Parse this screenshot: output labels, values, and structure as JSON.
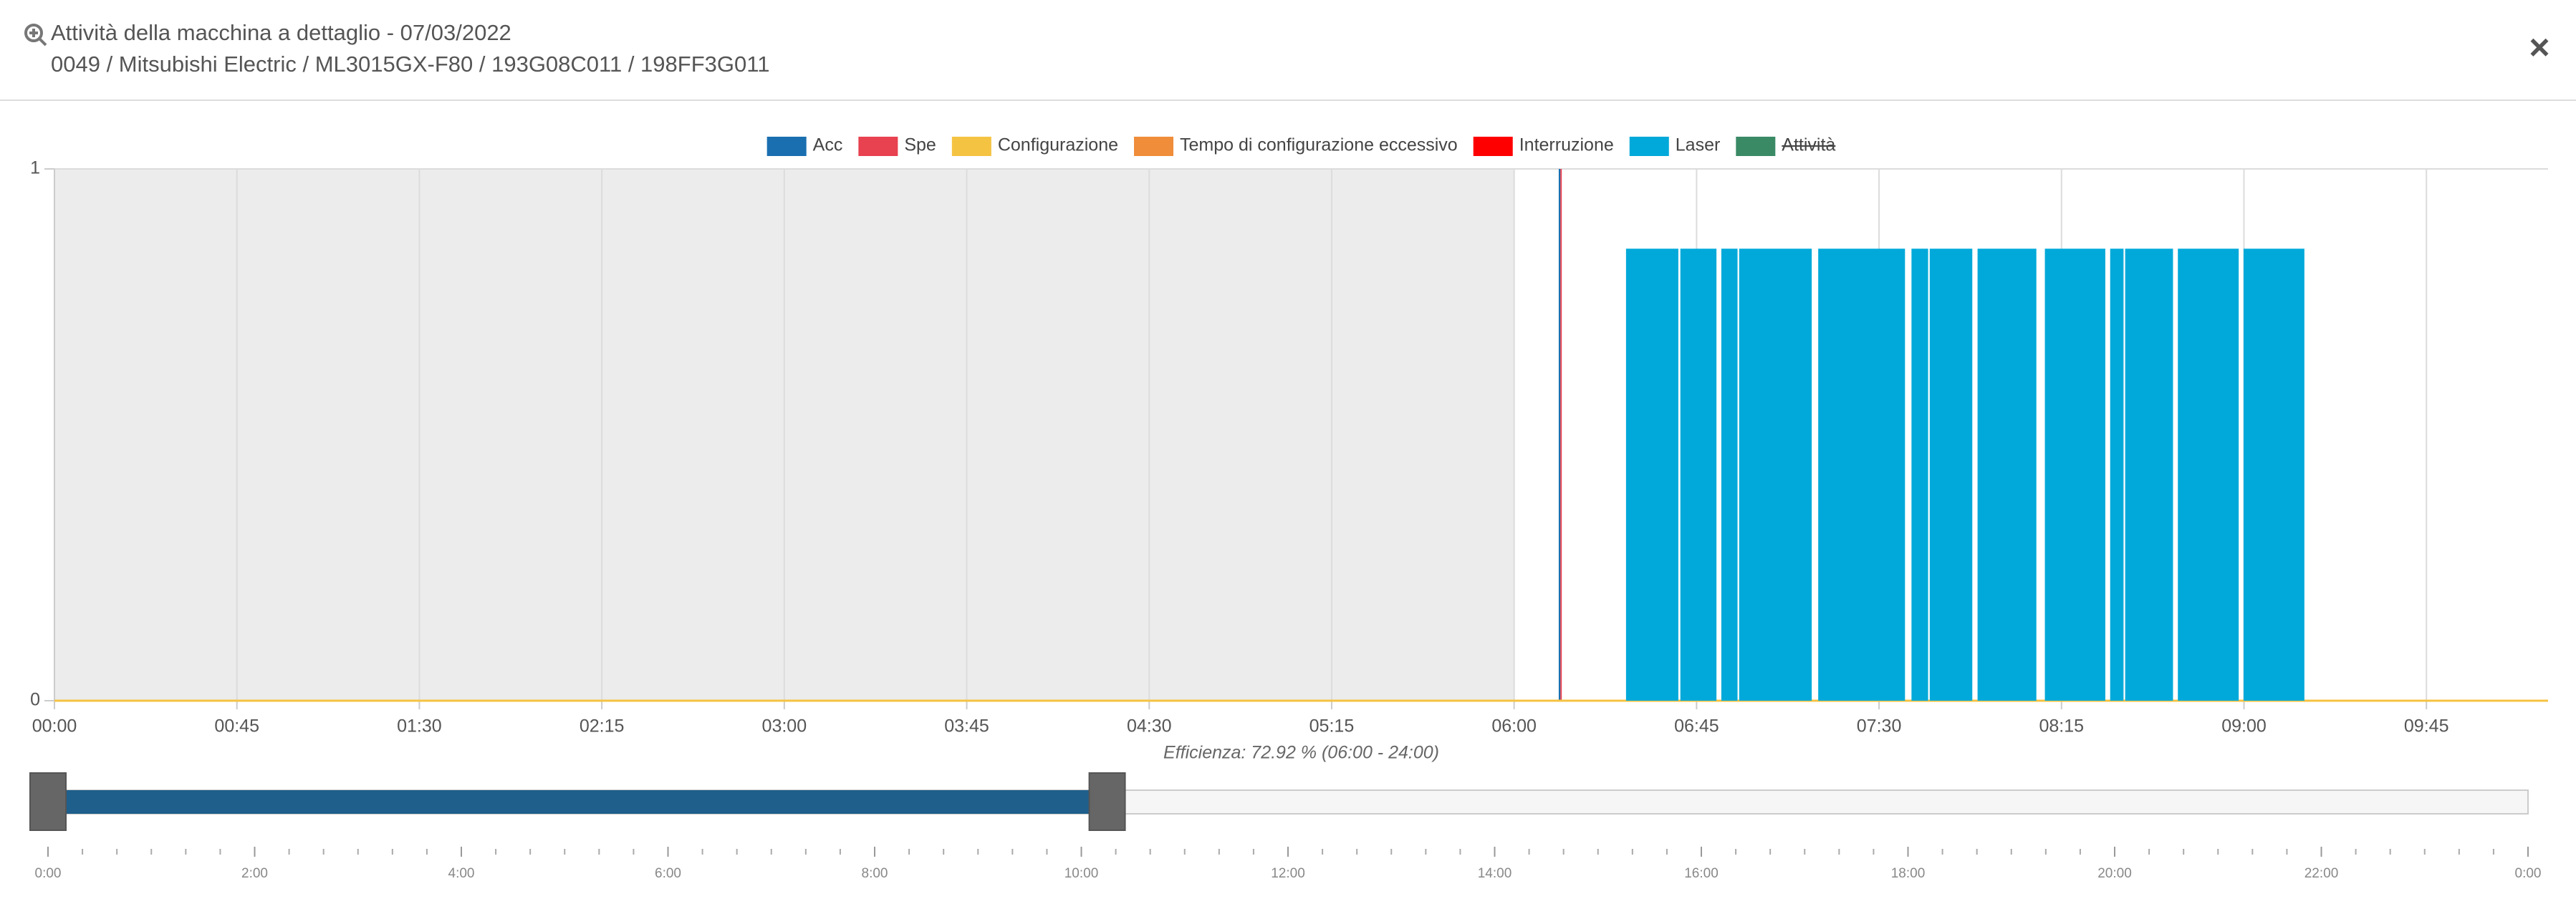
{
  "header": {
    "title": "Attività della macchina a dettaglio - 07/03/2022",
    "subtitle": "0049 / Mitsubishi Electric / ML3015GX-F80 / 193G08C011 / 198FF3G011",
    "close": "×"
  },
  "chart_data": {
    "type": "range-bar",
    "subtitle": "Efficienza: 72.92 % (06:00 - 24:00)",
    "xlim": [
      0,
      615
    ],
    "xticks": [
      {
        "value": 0,
        "label": "00:00"
      },
      {
        "value": 45,
        "label": "00:45"
      },
      {
        "value": 90,
        "label": "01:30"
      },
      {
        "value": 135,
        "label": "02:15"
      },
      {
        "value": 180,
        "label": "03:00"
      },
      {
        "value": 225,
        "label": "03:45"
      },
      {
        "value": 270,
        "label": "04:30"
      },
      {
        "value": 315,
        "label": "05:15"
      },
      {
        "value": 360,
        "label": "06:00"
      },
      {
        "value": 405,
        "label": "06:45"
      },
      {
        "value": 450,
        "label": "07:30"
      },
      {
        "value": 495,
        "label": "08:15"
      },
      {
        "value": 540,
        "label": "09:00"
      },
      {
        "value": 585,
        "label": "09:45"
      }
    ],
    "ylim": [
      0,
      1
    ],
    "yticks": [
      0,
      1
    ],
    "grid": true,
    "shaded_range": [
      0,
      360
    ],
    "shade_color": "#ececec",
    "legend": "top",
    "series": [
      {
        "name": "Acc",
        "color": "#1a6fb0",
        "segments": [
          {
            "start": 371.0,
            "end": 371.4,
            "value": 1
          }
        ]
      },
      {
        "name": "Spe",
        "color": "#e84150",
        "segments": [
          {
            "start": 371.4,
            "end": 371.7,
            "value": 1
          }
        ]
      },
      {
        "name": "Configurazione",
        "color": "#f5c342",
        "segments": [
          {
            "start": 0,
            "end": 615,
            "value": 0
          }
        ]
      },
      {
        "name": "Tempo di configurazione eccessivo",
        "color": "#f08d3a",
        "segments": []
      },
      {
        "name": "Interruzione",
        "color": "#ff0000",
        "segments": []
      },
      {
        "name": "Laser",
        "color": "#00a9d9",
        "segments": [
          {
            "start": 387.6,
            "end": 400.5,
            "value": 0.85
          },
          {
            "start": 401.0,
            "end": 409.9,
            "value": 0.85
          },
          {
            "start": 411.1,
            "end": 415.1,
            "value": 0.85
          },
          {
            "start": 415.5,
            "end": 433.4,
            "value": 0.85
          },
          {
            "start": 435.0,
            "end": 456.4,
            "value": 0.85
          },
          {
            "start": 458.0,
            "end": 462.1,
            "value": 0.85
          },
          {
            "start": 462.5,
            "end": 473.0,
            "value": 0.85
          },
          {
            "start": 474.3,
            "end": 488.8,
            "value": 0.85
          },
          {
            "start": 490.9,
            "end": 505.8,
            "value": 0.85
          },
          {
            "start": 507.0,
            "end": 510.3,
            "value": 0.85
          },
          {
            "start": 510.7,
            "end": 522.5,
            "value": 0.85
          },
          {
            "start": 523.7,
            "end": 538.7,
            "value": 0.85
          },
          {
            "start": 539.9,
            "end": 554.9,
            "value": 0.85
          }
        ]
      },
      {
        "name": "Attività",
        "color": "#3a8a66",
        "hidden": true,
        "segments": []
      }
    ],
    "navigator": {
      "xlim": [
        0,
        1440
      ],
      "selected": [
        0,
        615
      ],
      "color": "#1f5f8b",
      "xticks": [
        {
          "value": 0,
          "label": "0:00"
        },
        {
          "value": 120,
          "label": "2:00"
        },
        {
          "value": 240,
          "label": "4:00"
        },
        {
          "value": 360,
          "label": "6:00"
        },
        {
          "value": 480,
          "label": "8:00"
        },
        {
          "value": 600,
          "label": "10:00"
        },
        {
          "value": 720,
          "label": "12:00"
        },
        {
          "value": 840,
          "label": "14:00"
        },
        {
          "value": 960,
          "label": "16:00"
        },
        {
          "value": 1080,
          "label": "18:00"
        },
        {
          "value": 1200,
          "label": "20:00"
        },
        {
          "value": 1320,
          "label": "22:00"
        },
        {
          "value": 1440,
          "label": "0:00"
        }
      ]
    }
  }
}
